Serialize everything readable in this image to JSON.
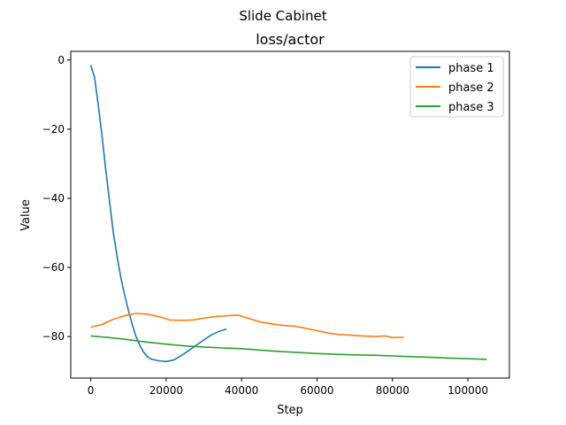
{
  "suptitle": "Slide Cabinet",
  "chart_data": {
    "type": "line",
    "title": "loss/actor",
    "xlabel": "Step",
    "ylabel": "Value",
    "xlim": [
      -5300,
      111000
    ],
    "ylim": [
      -92,
      2.5
    ],
    "xticks": [
      0,
      20000,
      40000,
      60000,
      80000,
      100000
    ],
    "xtick_labels": [
      "0",
      "20000",
      "40000",
      "60000",
      "80000",
      "100000"
    ],
    "yticks": [
      0,
      -20,
      -40,
      -60,
      -80
    ],
    "ytick_labels": [
      "0",
      "−20",
      "−40",
      "−60",
      "−80"
    ],
    "grid": false,
    "legend_position": "top-right",
    "series": [
      {
        "name": "phase 1",
        "color": "#1f77b4",
        "x": [
          0,
          1000,
          2000,
          3000,
          4000,
          5000,
          6000,
          7000,
          8000,
          9000,
          10000,
          11000,
          12000,
          13000,
          14000,
          15000,
          16000,
          18000,
          20000,
          22000,
          24000,
          26000,
          28000,
          30000,
          32000,
          34000,
          36000
        ],
        "y": [
          -1.5,
          -5,
          -13,
          -22,
          -32,
          -41,
          -50,
          -57,
          -63,
          -68,
          -72.5,
          -76.5,
          -80,
          -82.5,
          -84.5,
          -85.8,
          -86.5,
          -87,
          -87.2,
          -86.8,
          -85.5,
          -84,
          -82.5,
          -81,
          -79.5,
          -78.5,
          -77.8
        ]
      },
      {
        "name": "phase 2",
        "color": "#ff7f0e",
        "x": [
          0,
          3000,
          6000,
          9000,
          12000,
          15000,
          18000,
          21000,
          24000,
          27000,
          30000,
          33000,
          36000,
          39000,
          42000,
          45000,
          48000,
          51000,
          54000,
          57000,
          60000,
          63000,
          66000,
          69000,
          72000,
          75000,
          78000,
          80000,
          83000
        ],
        "y": [
          -77.3,
          -76.5,
          -75,
          -74,
          -73.3,
          -73.5,
          -74.2,
          -75.2,
          -75.3,
          -75.2,
          -74.7,
          -74.2,
          -74,
          -73.8,
          -74.8,
          -75.8,
          -76.3,
          -76.8,
          -77,
          -77.6,
          -78.3,
          -79,
          -79.4,
          -79.6,
          -79.8,
          -80,
          -79.8,
          -80.3,
          -80.2
        ]
      },
      {
        "name": "phase 3",
        "color": "#2ca02c",
        "x": [
          0,
          5000,
          10000,
          15000,
          20000,
          25000,
          30000,
          35000,
          40000,
          45000,
          50000,
          55000,
          60000,
          65000,
          70000,
          75000,
          80000,
          85000,
          90000,
          95000,
          100000,
          105000
        ],
        "y": [
          -79.8,
          -80.3,
          -80.9,
          -81.6,
          -82.2,
          -82.7,
          -83,
          -83.3,
          -83.5,
          -83.9,
          -84.3,
          -84.6,
          -84.9,
          -85.1,
          -85.3,
          -85.4,
          -85.6,
          -85.8,
          -86,
          -86.2,
          -86.4,
          -86.6
        ]
      }
    ]
  }
}
